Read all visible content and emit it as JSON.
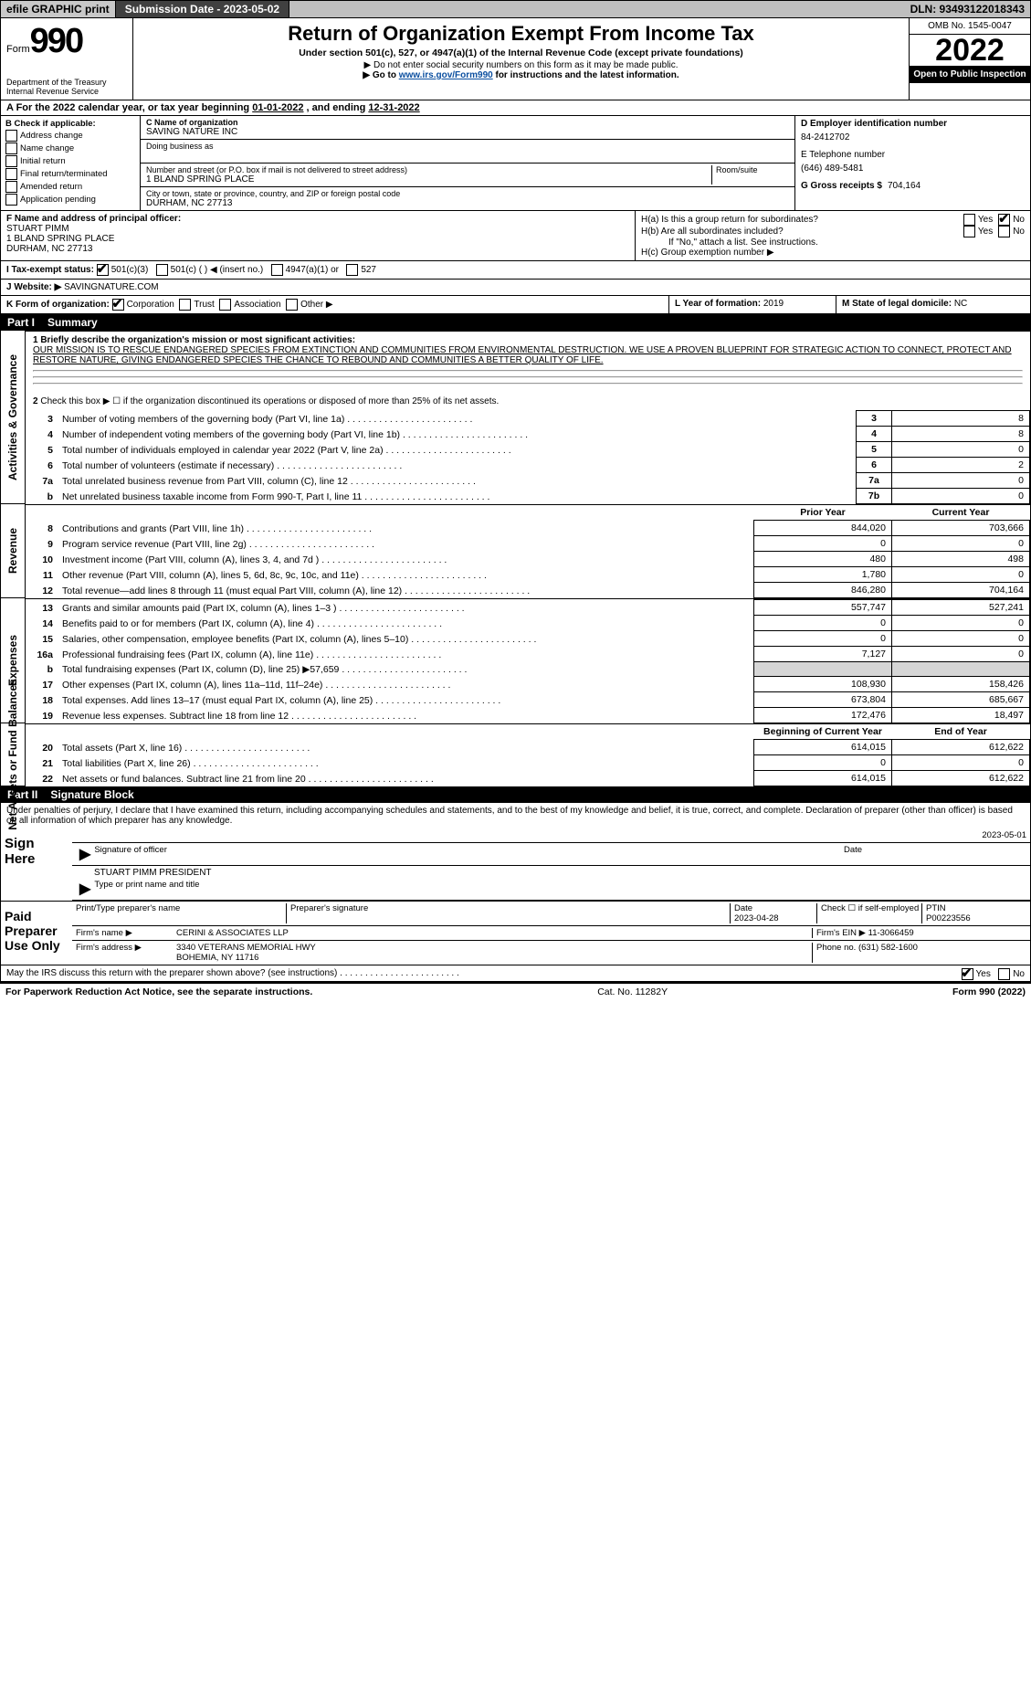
{
  "topbar": {
    "efile": "efile GRAPHIC print",
    "subdate_label": "Submission Date - 2023-05-02",
    "dln": "DLN: 93493122018343"
  },
  "header": {
    "form_word": "Form",
    "form_num": "990",
    "title": "Return of Organization Exempt From Income Tax",
    "sub1": "Under section 501(c), 527, or 4947(a)(1) of the Internal Revenue Code (except private foundations)",
    "sub2": "▶ Do not enter social security numbers on this form as it may be made public.",
    "sub3_pre": "▶ Go to ",
    "sub3_link": "www.irs.gov/Form990",
    "sub3_post": " for instructions and the latest information.",
    "omb": "OMB No. 1545-0047",
    "year": "2022",
    "otp": "Open to Public Inspection",
    "dept1": "Department of the Treasury",
    "dept2": "Internal Revenue Service"
  },
  "period": {
    "text_a": "A For the 2022 calendar year, or tax year beginning ",
    "begin": "01-01-2022",
    "mid": " , and ending ",
    "end": "12-31-2022"
  },
  "sectionB": {
    "title": "B Check if applicable:",
    "opts": [
      "Address change",
      "Name change",
      "Initial return",
      "Final return/terminated",
      "Amended return",
      "Application pending"
    ]
  },
  "sectionC": {
    "name_lbl": "C Name of organization",
    "name": "SAVING NATURE INC",
    "dba_lbl": "Doing business as",
    "addr_lbl": "Number and street (or P.O. box if mail is not delivered to street address)",
    "room_lbl": "Room/suite",
    "addr": "1 BLAND SPRING PLACE",
    "city_lbl": "City or town, state or province, country, and ZIP or foreign postal code",
    "city": "DURHAM, NC  27713"
  },
  "sectionD": {
    "lbl": "D Employer identification number",
    "val": "84-2412702"
  },
  "sectionE": {
    "lbl": "E Telephone number",
    "val": "(646) 489-5481"
  },
  "sectionG": {
    "lbl": "G Gross receipts $",
    "val": "704,164"
  },
  "sectionF": {
    "lbl": "F  Name and address of principal officer:",
    "name": "STUART PIMM",
    "addr": "1 BLAND SPRING PLACE",
    "city": "DURHAM, NC  27713"
  },
  "sectionH": {
    "ha": "H(a)  Is this a group return for subordinates?",
    "hb": "H(b)  Are all subordinates included?",
    "hb_note": "If \"No,\" attach a list. See instructions.",
    "hc": "H(c)  Group exemption number ▶",
    "yes": "Yes",
    "no": "No"
  },
  "sectionI": {
    "lbl": "I   Tax-exempt status:",
    "opt1": "501(c)(3)",
    "opt2": "501(c) (  ) ◀ (insert no.)",
    "opt3": "4947(a)(1) or",
    "opt4": "527"
  },
  "sectionJ": {
    "lbl": "J   Website: ▶",
    "val": "SAVINGNATURE.COM"
  },
  "sectionK": {
    "lbl": "K Form of organization:",
    "opts": [
      "Corporation",
      "Trust",
      "Association",
      "Other ▶"
    ]
  },
  "sectionL": {
    "lbl": "L Year of formation:",
    "val": "2019"
  },
  "sectionM": {
    "lbl": "M State of legal domicile:",
    "val": "NC"
  },
  "part1": {
    "hdr_no": "Part I",
    "hdr_title": "Summary",
    "line1_lbl": "1   Briefly describe the organization's mission or most significant activities:",
    "mission": "OUR MISSION IS TO RESCUE ENDANGERED SPECIES FROM EXTINCTION AND COMMUNITIES FROM ENVIRONMENTAL DESTRUCTION. WE USE A PROVEN BLUEPRINT FOR STRATEGIC ACTION TO CONNECT, PROTECT AND RESTORE NATURE, GIVING ENDANGERED SPECIES THE CHANCE TO REBOUND AND COMMUNITIES A BETTER QUALITY OF LIFE.",
    "line2": "Check this box ▶ ☐ if the organization discontinued its operations or disposed of more than 25% of its net assets.",
    "rows_single": [
      {
        "n": "3",
        "t": "Number of voting members of the governing body (Part VI, line 1a)",
        "b": "3",
        "v": "8"
      },
      {
        "n": "4",
        "t": "Number of independent voting members of the governing body (Part VI, line 1b)",
        "b": "4",
        "v": "8"
      },
      {
        "n": "5",
        "t": "Total number of individuals employed in calendar year 2022 (Part V, line 2a)",
        "b": "5",
        "v": "0"
      },
      {
        "n": "6",
        "t": "Total number of volunteers (estimate if necessary)",
        "b": "6",
        "v": "2"
      },
      {
        "n": "7a",
        "t": "Total unrelated business revenue from Part VIII, column (C), line 12",
        "b": "7a",
        "v": "0"
      },
      {
        "n": "b",
        "t": "Net unrelated business taxable income from Form 990-T, Part I, line 11",
        "b": "7b",
        "v": "0"
      }
    ],
    "col_prior": "Prior Year",
    "col_curr": "Current Year",
    "revenue": [
      {
        "n": "8",
        "t": "Contributions and grants (Part VIII, line 1h)",
        "p": "844,020",
        "c": "703,666"
      },
      {
        "n": "9",
        "t": "Program service revenue (Part VIII, line 2g)",
        "p": "0",
        "c": "0"
      },
      {
        "n": "10",
        "t": "Investment income (Part VIII, column (A), lines 3, 4, and 7d )",
        "p": "480",
        "c": "498"
      },
      {
        "n": "11",
        "t": "Other revenue (Part VIII, column (A), lines 5, 6d, 8c, 9c, 10c, and 11e)",
        "p": "1,780",
        "c": "0"
      },
      {
        "n": "12",
        "t": "Total revenue—add lines 8 through 11 (must equal Part VIII, column (A), line 12)",
        "p": "846,280",
        "c": "704,164"
      }
    ],
    "expenses": [
      {
        "n": "13",
        "t": "Grants and similar amounts paid (Part IX, column (A), lines 1–3 )",
        "p": "557,747",
        "c": "527,241"
      },
      {
        "n": "14",
        "t": "Benefits paid to or for members (Part IX, column (A), line 4)",
        "p": "0",
        "c": "0"
      },
      {
        "n": "15",
        "t": "Salaries, other compensation, employee benefits (Part IX, column (A), lines 5–10)",
        "p": "0",
        "c": "0"
      },
      {
        "n": "16a",
        "t": "Professional fundraising fees (Part IX, column (A), line 11e)",
        "p": "7,127",
        "c": "0"
      },
      {
        "n": "b",
        "t": "Total fundraising expenses (Part IX, column (D), line 25) ▶57,659",
        "p": "grey",
        "c": "grey"
      },
      {
        "n": "17",
        "t": "Other expenses (Part IX, column (A), lines 11a–11d, 11f–24e)",
        "p": "108,930",
        "c": "158,426"
      },
      {
        "n": "18",
        "t": "Total expenses. Add lines 13–17 (must equal Part IX, column (A), line 25)",
        "p": "673,804",
        "c": "685,667"
      },
      {
        "n": "19",
        "t": "Revenue less expenses. Subtract line 18 from line 12",
        "p": "172,476",
        "c": "18,497"
      }
    ],
    "col_boy": "Beginning of Current Year",
    "col_eoy": "End of Year",
    "netassets": [
      {
        "n": "20",
        "t": "Total assets (Part X, line 16)",
        "p": "614,015",
        "c": "612,622"
      },
      {
        "n": "21",
        "t": "Total liabilities (Part X, line 26)",
        "p": "0",
        "c": "0"
      },
      {
        "n": "22",
        "t": "Net assets or fund balances. Subtract line 21 from line 20",
        "p": "614,015",
        "c": "612,622"
      }
    ],
    "side_gov": "Activities & Governance",
    "side_rev": "Revenue",
    "side_exp": "Expenses",
    "side_net": "Net Assets or Fund Balances"
  },
  "part2": {
    "hdr_no": "Part II",
    "hdr_title": "Signature Block",
    "jurat": "Under penalties of perjury, I declare that I have examined this return, including accompanying schedules and statements, and to the best of my knowledge and belief, it is true, correct, and complete. Declaration of preparer (other than officer) is based on all information of which preparer has any knowledge.",
    "sign_here": "Sign Here",
    "sig_officer": "Signature of officer",
    "sig_date": "Date",
    "sig_date_val": "2023-05-01",
    "officer_name": "STUART PIMM PRESIDENT",
    "officer_sub": "Type or print name and title",
    "paid": "Paid Preparer Use Only",
    "prep_name_lbl": "Print/Type preparer's name",
    "prep_sig_lbl": "Preparer's signature",
    "prep_date_lbl": "Date",
    "prep_date": "2023-04-28",
    "prep_check": "Check ☐ if self-employed",
    "ptin_lbl": "PTIN",
    "ptin": "P00223556",
    "firm_name_lbl": "Firm's name   ▶",
    "firm_name": "CERINI & ASSOCIATES LLP",
    "firm_ein_lbl": "Firm's EIN ▶",
    "firm_ein": "11-3066459",
    "firm_addr_lbl": "Firm's address ▶",
    "firm_addr1": "3340 VETERANS MEMORIAL HWY",
    "firm_addr2": "BOHEMIA, NY  11716",
    "phone_lbl": "Phone no.",
    "phone": "(631) 582-1600",
    "discuss": "May the IRS discuss this return with the preparer shown above? (see instructions)",
    "yes": "Yes",
    "no": "No"
  },
  "footer": {
    "left": "For Paperwork Reduction Act Notice, see the separate instructions.",
    "mid": "Cat. No. 11282Y",
    "right": "Form 990 (2022)"
  }
}
